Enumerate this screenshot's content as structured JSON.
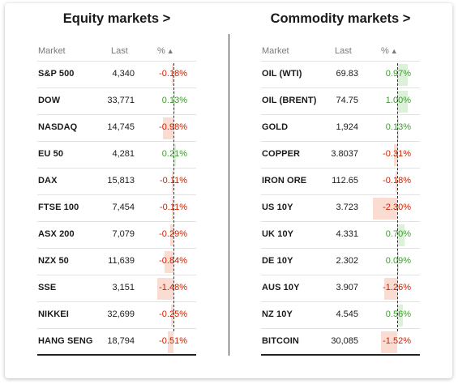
{
  "colors": {
    "negative": "#cc2200",
    "positive": "#3f9a30",
    "negative_bar": "#fadcd2",
    "positive_bar": "#ddf0da"
  },
  "equity": {
    "title": "Equity markets >",
    "headers": {
      "market": "Market",
      "last": "Last",
      "pct": "%",
      "sort_icon": "▲"
    },
    "rows": [
      {
        "market": "S&P 500",
        "last": "4,340",
        "pct": "-0.18%",
        "change": -0.18
      },
      {
        "market": "DOW",
        "last": "33,771",
        "pct": "0.13%",
        "change": 0.13
      },
      {
        "market": "NASDAQ",
        "last": "14,745",
        "pct": "-0.98%",
        "change": -0.98
      },
      {
        "market": "EU 50",
        "last": "4,281",
        "pct": "0.21%",
        "change": 0.21
      },
      {
        "market": "DAX",
        "last": "15,813",
        "pct": "-0.11%",
        "change": -0.11
      },
      {
        "market": "FTSE 100",
        "last": "7,454",
        "pct": "-0.11%",
        "change": -0.11
      },
      {
        "market": "ASX 200",
        "last": "7,079",
        "pct": "-0.29%",
        "change": -0.29
      },
      {
        "market": "NZX 50",
        "last": "11,639",
        "pct": "-0.84%",
        "change": -0.84
      },
      {
        "market": "SSE",
        "last": "3,151",
        "pct": "-1.48%",
        "change": -1.48
      },
      {
        "market": "NIKKEI",
        "last": "32,699",
        "pct": "-0.25%",
        "change": -0.25
      },
      {
        "market": "HANG SENG",
        "last": "18,794",
        "pct": "-0.51%",
        "change": -0.51
      }
    ]
  },
  "commodity": {
    "title": "Commodity markets >",
    "headers": {
      "market": "Market",
      "last": "Last",
      "pct": "%",
      "sort_icon": "▲"
    },
    "rows": [
      {
        "market": "OIL (WTI)",
        "last": "69.83",
        "pct": "0.97%",
        "change": 0.97
      },
      {
        "market": "OIL (BRENT)",
        "last": "74.75",
        "pct": "1.00%",
        "change": 1.0
      },
      {
        "market": "GOLD",
        "last": "1,924",
        "pct": "0.13%",
        "change": 0.13
      },
      {
        "market": "COPPER",
        "last": "3.8037",
        "pct": "-0.31%",
        "change": -0.31
      },
      {
        "market": "IRON ORE",
        "last": "112.65",
        "pct": "-0.18%",
        "change": -0.18
      },
      {
        "market": "US 10Y",
        "last": "3.723",
        "pct": "-2.30%",
        "change": -2.3
      },
      {
        "market": "UK 10Y",
        "last": "4.331",
        "pct": "0.70%",
        "change": 0.7
      },
      {
        "market": "DE 10Y",
        "last": "2.302",
        "pct": "0.09%",
        "change": 0.09
      },
      {
        "market": "AUS 10Y",
        "last": "3.907",
        "pct": "-1.26%",
        "change": -1.26
      },
      {
        "market": "NZ 10Y",
        "last": "4.545",
        "pct": "0.56%",
        "change": 0.56
      },
      {
        "market": "BITCOIN",
        "last": "30,085",
        "pct": "-1.52%",
        "change": -1.52
      }
    ]
  }
}
